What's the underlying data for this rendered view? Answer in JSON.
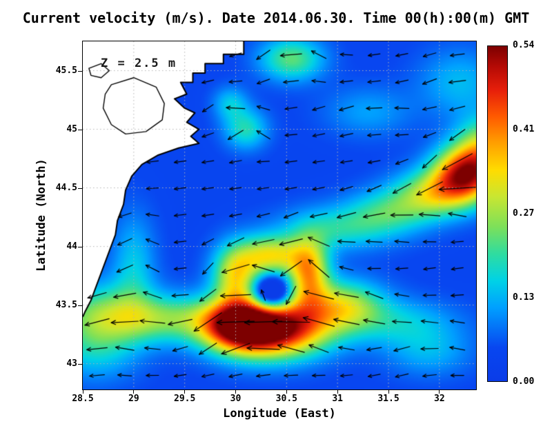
{
  "title": "Current velocity (m/s). Date 2014.06.30. Time 00(h):00(m) GMT",
  "annotation": "Z = 2.5 m",
  "axes": {
    "xlabel": "Longitude (East)",
    "ylabel": "Latitude (North)",
    "x_tick_values": [
      28.5,
      29,
      29.5,
      30,
      30.5,
      31,
      31.5,
      32
    ],
    "x_tick_labels": [
      "28.5",
      "29",
      "29.5",
      "30",
      "30.5",
      "31",
      "31.5",
      "32"
    ],
    "y_tick_values": [
      43,
      43.5,
      44,
      44.5,
      45,
      45.5
    ],
    "y_tick_labels": [
      "43",
      "43.5",
      "44",
      "44.5",
      "45",
      "45.5"
    ],
    "lon_range": [
      28.5,
      32.36
    ],
    "lat_range": [
      42.78,
      45.75
    ]
  },
  "colorbar": {
    "min": 0,
    "max": 0.54,
    "tick_values": [
      0,
      0.135,
      0.27,
      0.405,
      0.54
    ],
    "tick_labels": [
      "0.00",
      "0.13",
      "0.27",
      "0.41",
      "0.54"
    ]
  },
  "chart_data": {
    "type": "heatmap",
    "variable": "sea surface current velocity magnitude with direction vectors",
    "units": "m/s",
    "date": "2014.06.30",
    "time": "00(h):00(m) GMT",
    "depth_m": 2.5,
    "value_range": [
      0,
      0.54
    ],
    "background_speed": 0.05,
    "land_color": "#ffffff",
    "colormap": [
      [
        0.0,
        "#0a3ce8"
      ],
      [
        0.1,
        "#0846f0"
      ],
      [
        0.22,
        "#00a0ff"
      ],
      [
        0.3,
        "#00d2e6"
      ],
      [
        0.38,
        "#2fdca0"
      ],
      [
        0.46,
        "#7ce05a"
      ],
      [
        0.55,
        "#c8e632"
      ],
      [
        0.63,
        "#ffdc00"
      ],
      [
        0.71,
        "#ffa000"
      ],
      [
        0.79,
        "#ff5a00"
      ],
      [
        0.87,
        "#e61e0a"
      ],
      [
        0.94,
        "#b40a05"
      ],
      [
        1.0,
        "#7d0000"
      ]
    ],
    "blob_format": [
      "lon",
      "lat",
      "sigma_lon",
      "sigma_lat",
      "amplitude_m_s"
    ],
    "speed_blobs": [
      [
        30.35,
        43.3,
        0.38,
        0.17,
        0.52
      ],
      [
        30.02,
        43.33,
        0.24,
        0.15,
        0.28
      ],
      [
        29.35,
        43.38,
        0.45,
        0.14,
        0.17
      ],
      [
        28.72,
        43.45,
        0.35,
        0.18,
        0.14
      ],
      [
        28.62,
        43.15,
        0.3,
        0.2,
        0.12
      ],
      [
        30.0,
        43.75,
        0.16,
        0.18,
        0.26
      ],
      [
        30.35,
        43.92,
        0.22,
        0.12,
        0.26
      ],
      [
        30.72,
        43.78,
        0.14,
        0.2,
        0.3
      ],
      [
        30.35,
        43.6,
        0.13,
        0.1,
        -0.28
      ],
      [
        31.05,
        43.5,
        0.28,
        0.15,
        0.22
      ],
      [
        31.6,
        43.35,
        0.4,
        0.14,
        0.1
      ],
      [
        32.25,
        44.62,
        0.22,
        0.16,
        0.4
      ],
      [
        31.95,
        44.45,
        0.28,
        0.14,
        0.22
      ],
      [
        32.45,
        44.85,
        0.2,
        0.18,
        0.22
      ],
      [
        31.0,
        44.15,
        0.4,
        0.13,
        0.13
      ],
      [
        31.5,
        44.3,
        0.3,
        0.13,
        0.13
      ],
      [
        30.1,
        45.0,
        0.15,
        0.12,
        0.14
      ],
      [
        29.95,
        45.22,
        0.12,
        0.1,
        0.1
      ],
      [
        30.55,
        45.6,
        0.22,
        0.13,
        0.18
      ],
      [
        32.2,
        45.4,
        0.28,
        0.2,
        0.09
      ],
      [
        29.0,
        43.85,
        0.15,
        0.3,
        0.1
      ],
      [
        31.9,
        43.1,
        0.3,
        0.15,
        0.08
      ],
      [
        31.3,
        45.15,
        0.3,
        0.15,
        0.07
      ]
    ],
    "vector_field": {
      "grid_lon_start": 28.64,
      "grid_lon_step": 0.272,
      "grid_cols": 14,
      "grid_lat_start": 42.9,
      "grid_lat_step": 0.228,
      "grid_rows": 13,
      "u_base": -0.06,
      "u_speed_factor": -0.55,
      "v_base": -0.012,
      "deflection": -0.18,
      "arrow_color": "#000000"
    },
    "coastline": [
      [
        30.08,
        45.75
      ],
      [
        30.08,
        45.64
      ],
      [
        29.88,
        45.64
      ],
      [
        29.88,
        45.56
      ],
      [
        29.7,
        45.56
      ],
      [
        29.7,
        45.48
      ],
      [
        29.58,
        45.48
      ],
      [
        29.58,
        45.4
      ],
      [
        29.46,
        45.4
      ],
      [
        29.52,
        45.3
      ],
      [
        29.4,
        45.26
      ],
      [
        29.5,
        45.18
      ],
      [
        29.6,
        45.14
      ],
      [
        29.52,
        45.06
      ],
      [
        29.64,
        45.0
      ],
      [
        29.56,
        44.94
      ],
      [
        29.64,
        44.88
      ],
      [
        29.44,
        44.84
      ],
      [
        29.24,
        44.78
      ],
      [
        29.08,
        44.7
      ],
      [
        28.98,
        44.6
      ],
      [
        28.92,
        44.48
      ],
      [
        28.9,
        44.36
      ],
      [
        28.84,
        44.22
      ],
      [
        28.82,
        44.1
      ],
      [
        28.76,
        43.96
      ],
      [
        28.7,
        43.82
      ],
      [
        28.64,
        43.68
      ],
      [
        28.58,
        43.54
      ],
      [
        28.52,
        43.44
      ],
      [
        28.5,
        43.4
      ]
    ],
    "lagoon_outlines": [
      [
        [
          28.78,
          45.38
        ],
        [
          29.0,
          45.44
        ],
        [
          29.22,
          45.36
        ],
        [
          29.3,
          45.22
        ],
        [
          29.28,
          45.08
        ],
        [
          29.12,
          44.98
        ],
        [
          28.92,
          44.96
        ],
        [
          28.78,
          45.04
        ],
        [
          28.7,
          45.18
        ],
        [
          28.72,
          45.3
        ]
      ],
      [
        [
          28.56,
          45.52
        ],
        [
          28.68,
          45.56
        ],
        [
          28.76,
          45.5
        ],
        [
          28.68,
          45.44
        ],
        [
          28.58,
          45.46
        ]
      ]
    ],
    "grid": {
      "color": "#b4b4b4",
      "dash": [
        1.5,
        3.5
      ],
      "lon_step": 0.5,
      "lat_step": 0.5
    }
  }
}
